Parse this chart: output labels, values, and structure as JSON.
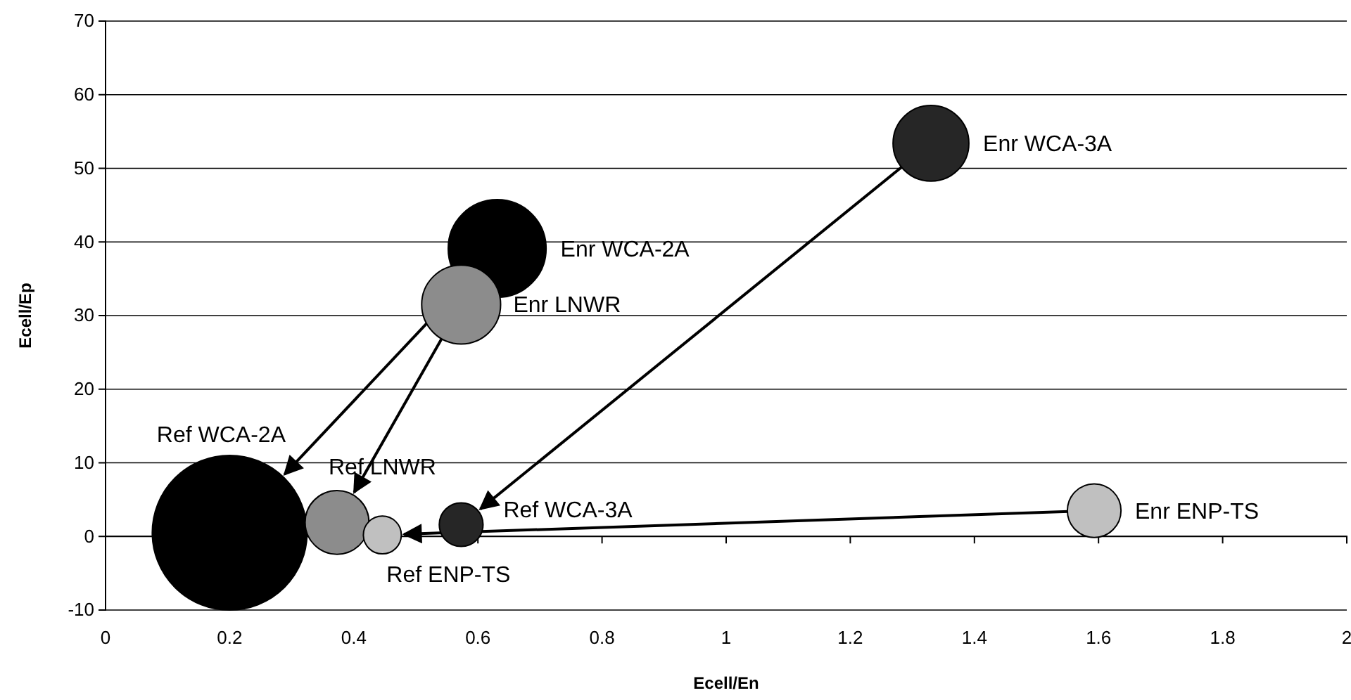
{
  "chart_data": {
    "type": "bubble",
    "xlabel": "Ecell/En",
    "ylabel": "Ecell/Ep",
    "xlim": [
      0,
      2
    ],
    "xticks": [
      0,
      0.2,
      0.4,
      0.6,
      0.8,
      1,
      1.2,
      1.4,
      1.6,
      1.8,
      2
    ],
    "ylim": [
      -10,
      70
    ],
    "yticks": [
      -10,
      0,
      10,
      20,
      30,
      40,
      50,
      60,
      70
    ],
    "grid": "y",
    "series": [
      {
        "color": "#000000",
        "x": [
          0.631,
          0.2
        ],
        "values": [
          39.1,
          0.5
        ],
        "sizes": [
          0.4,
          1
        ]
      },
      {
        "color": "#8c8c8c",
        "x": [
          0.573,
          0.373
        ],
        "values": [
          31.5,
          1.9
        ],
        "sizes": [
          0.26,
          0.17
        ]
      },
      {
        "color": "#c0c0c0",
        "x": [
          1.593,
          0.446
        ],
        "values": [
          3.5,
          0.2
        ],
        "sizes": [
          0.12,
          0.06
        ]
      },
      {
        "color": "#262626",
        "x": [
          1.33,
          0.573
        ],
        "values": [
          53.4,
          1.6
        ],
        "sizes": [
          0.24,
          0.08
        ]
      }
    ],
    "annotations": [
      {
        "text": "Enr WCA-2A",
        "x": 0.631,
        "y": 39.1
      },
      {
        "text": "Enr LNWR",
        "x": 0.573,
        "y": 31.5
      },
      {
        "text": "Enr ENP-TS",
        "x": 1.593,
        "y": 3.5
      },
      {
        "text": "Enr WCA-3A",
        "x": 1.33,
        "y": 53.4
      },
      "Ref WCA-2A",
      {
        "text": "Ref LNWR",
        "x": 0.373,
        "y": 1.9
      },
      {
        "text": "Ref ENP-TS",
        "x": 0.446,
        "y": 0.2
      },
      {
        "text": "Ref WCA-3A",
        "x": 0.573,
        "y": 1.6
      }
    ]
  }
}
